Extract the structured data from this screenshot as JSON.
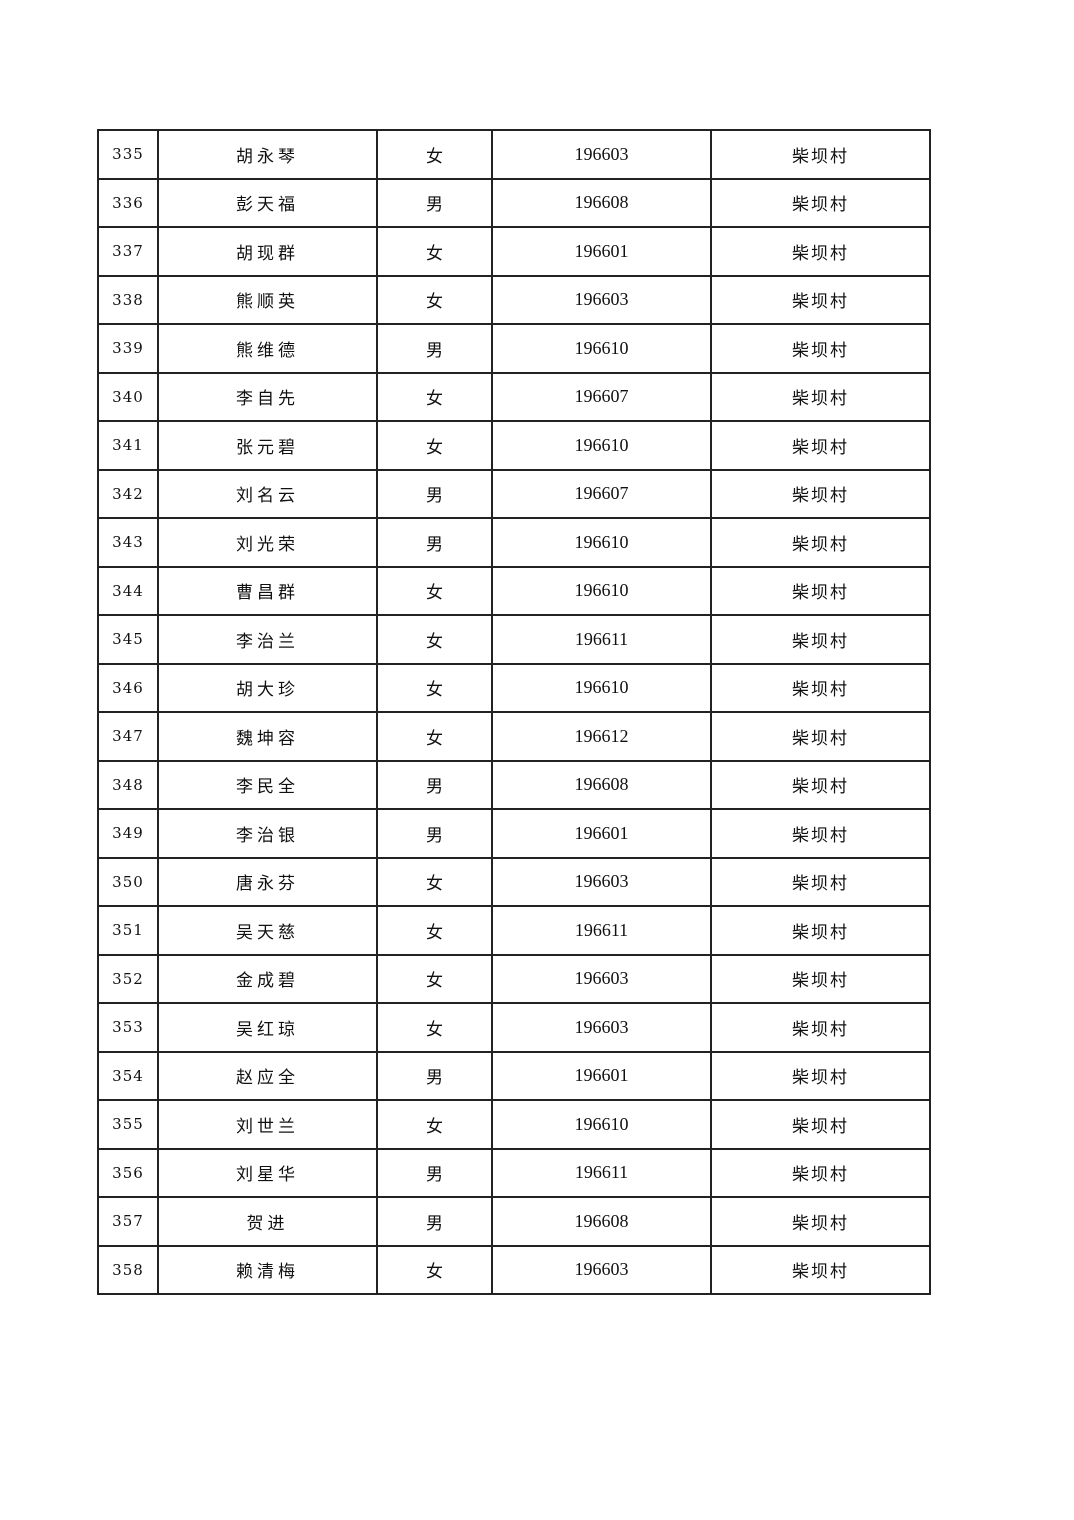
{
  "table": {
    "rows": [
      [
        "335",
        "胡永琴",
        "女",
        "196603",
        "柴坝村"
      ],
      [
        "336",
        "彭天福",
        "男",
        "196608",
        "柴坝村"
      ],
      [
        "337",
        "胡现群",
        "女",
        "196601",
        "柴坝村"
      ],
      [
        "338",
        "熊顺英",
        "女",
        "196603",
        "柴坝村"
      ],
      [
        "339",
        "熊维德",
        "男",
        "196610",
        "柴坝村"
      ],
      [
        "340",
        "李自先",
        "女",
        "196607",
        "柴坝村"
      ],
      [
        "341",
        "张元碧",
        "女",
        "196610",
        "柴坝村"
      ],
      [
        "342",
        "刘名云",
        "男",
        "196607",
        "柴坝村"
      ],
      [
        "343",
        "刘光荣",
        "男",
        "196610",
        "柴坝村"
      ],
      [
        "344",
        "曹昌群",
        "女",
        "196610",
        "柴坝村"
      ],
      [
        "345",
        "李治兰",
        "女",
        "196611",
        "柴坝村"
      ],
      [
        "346",
        "胡大珍",
        "女",
        "196610",
        "柴坝村"
      ],
      [
        "347",
        "魏坤容",
        "女",
        "196612",
        "柴坝村"
      ],
      [
        "348",
        "李民全",
        "男",
        "196608",
        "柴坝村"
      ],
      [
        "349",
        "李治银",
        "男",
        "196601",
        "柴坝村"
      ],
      [
        "350",
        "唐永芬",
        "女",
        "196603",
        "柴坝村"
      ],
      [
        "351",
        "吴天慈",
        "女",
        "196611",
        "柴坝村"
      ],
      [
        "352",
        "金成碧",
        "女",
        "196603",
        "柴坝村"
      ],
      [
        "353",
        "吴红琼",
        "女",
        "196603",
        "柴坝村"
      ],
      [
        "354",
        "赵应全",
        "男",
        "196601",
        "柴坝村"
      ],
      [
        "355",
        "刘世兰",
        "女",
        "196610",
        "柴坝村"
      ],
      [
        "356",
        "刘星华",
        "男",
        "196611",
        "柴坝村"
      ],
      [
        "357",
        "贺进",
        "男",
        "196608",
        "柴坝村"
      ],
      [
        "358",
        "赖清梅",
        "女",
        "196603",
        "柴坝村"
      ]
    ]
  }
}
